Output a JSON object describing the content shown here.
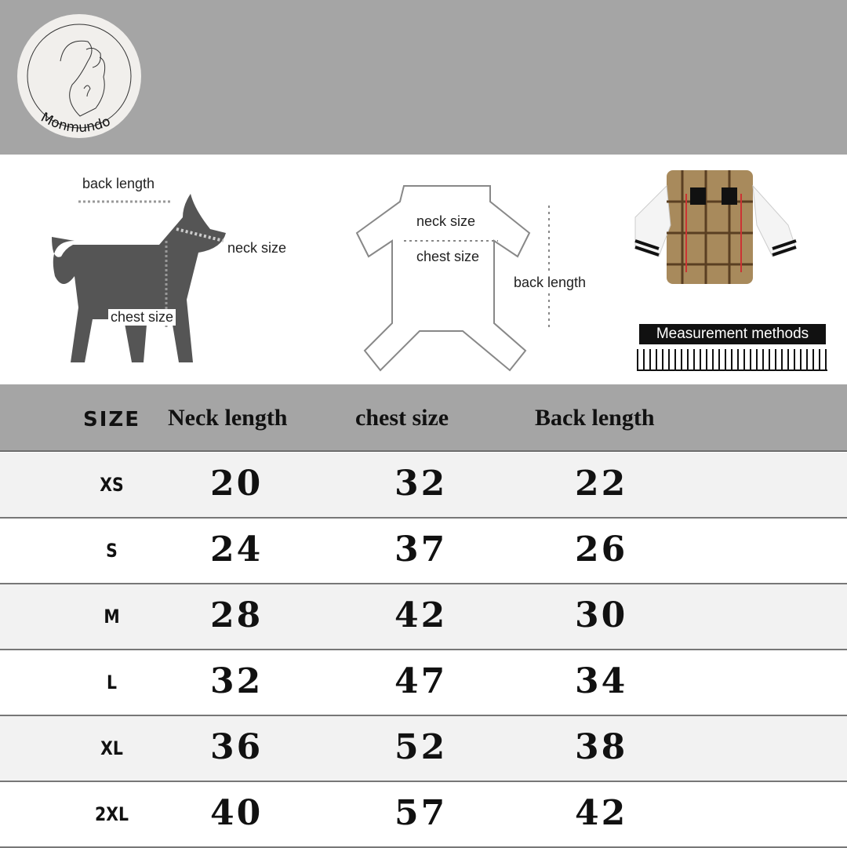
{
  "brand": {
    "logo_text": "Monmundo"
  },
  "diagrams": {
    "dog": {
      "back_length": "back length",
      "neck_size": "neck size",
      "chest_size": "chest size"
    },
    "shirt": {
      "neck_size": "neck size",
      "chest_size": "chest size",
      "back_length": "back length"
    },
    "product": {
      "caption": "Measurement methods"
    }
  },
  "table": {
    "headers": [
      "SIZE",
      "Neck length",
      "chest size",
      "Back length"
    ],
    "rows": [
      {
        "size": "XS",
        "neck": "20",
        "chest": "32",
        "back": "22"
      },
      {
        "size": "S",
        "neck": "24",
        "chest": "37",
        "back": "26"
      },
      {
        "size": "M",
        "neck": "28",
        "chest": "42",
        "back": "30"
      },
      {
        "size": "L",
        "neck": "32",
        "chest": "47",
        "back": "34"
      },
      {
        "size": "XL",
        "neck": "36",
        "chest": "52",
        "back": "38"
      },
      {
        "size": "2XL",
        "neck": "40",
        "chest": "57",
        "back": "42"
      }
    ]
  },
  "colors": {
    "band": "#a5a5a5",
    "row_alt": "#f2f2f2",
    "row": "#ffffff"
  }
}
